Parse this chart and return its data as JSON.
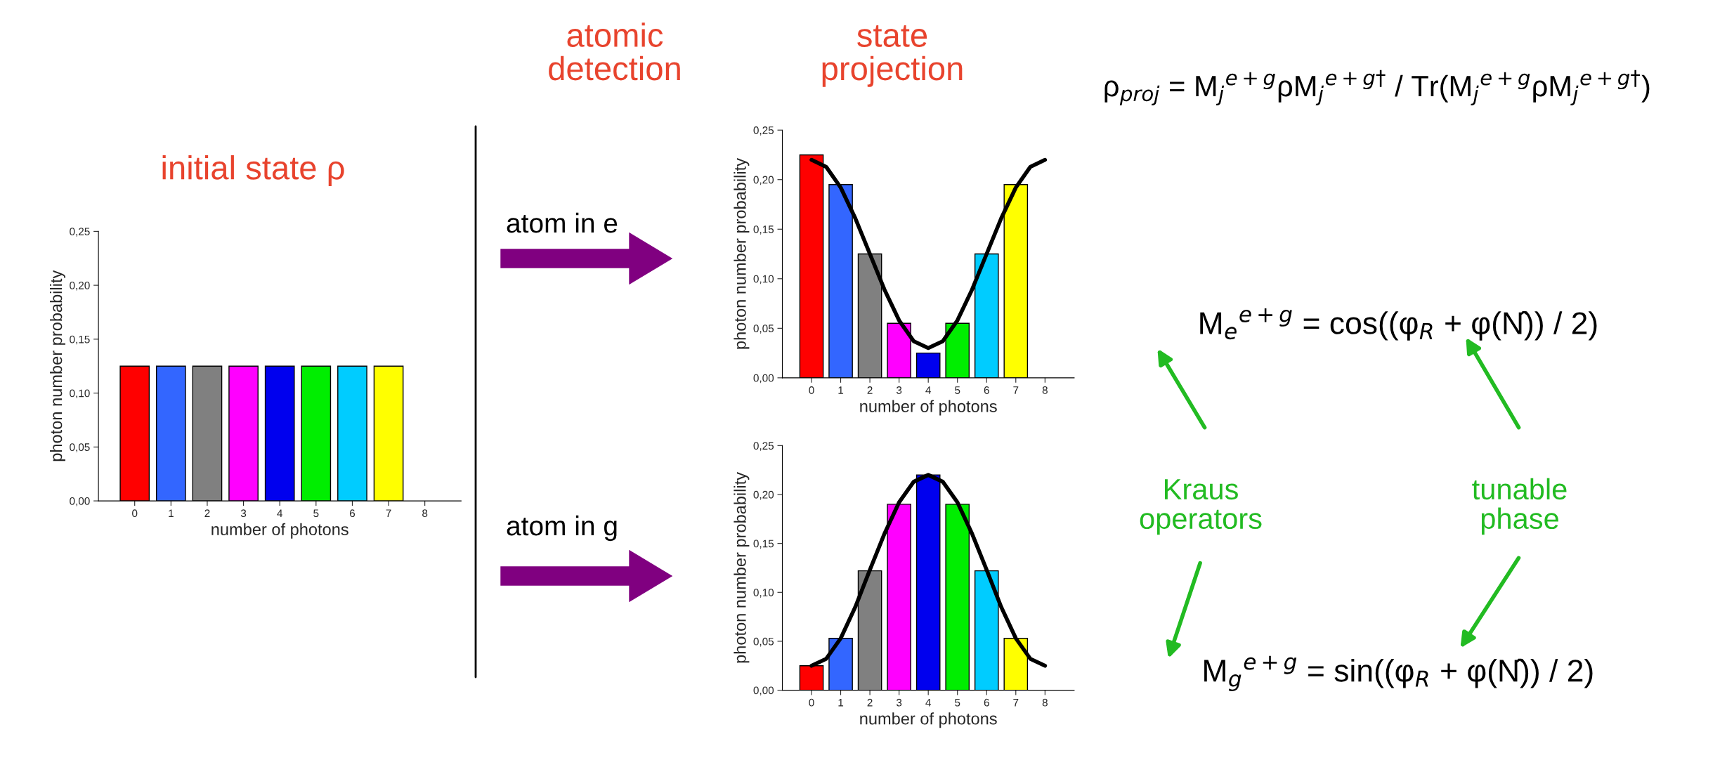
{
  "chart_data": [
    {
      "type": "bar",
      "x": [
        0,
        1,
        2,
        3,
        4,
        5,
        6,
        7
      ],
      "values": [
        0.125,
        0.125,
        0.125,
        0.125,
        0.125,
        0.125,
        0.125,
        0.125
      ],
      "colors": [
        "#ff0000",
        "#3366ff",
        "#808080",
        "#ff00ff",
        "#0000ee",
        "#00ee00",
        "#00ccff",
        "#ffff00"
      ],
      "xlabel": "number of photons",
      "ylabel": "photon number probability",
      "xlim": [
        -1,
        9
      ],
      "xticks": [
        0,
        1,
        2,
        3,
        4,
        5,
        6,
        7,
        8
      ],
      "ylim": [
        0,
        0.25
      ],
      "yticks": [
        {
          "value": 0,
          "label": "0,00"
        },
        {
          "value": 0.05,
          "label": "0,05"
        },
        {
          "value": 0.1,
          "label": "0,10"
        },
        {
          "value": 0.15,
          "label": "0,15"
        },
        {
          "value": 0.2,
          "label": "0,20"
        },
        {
          "value": 0.25,
          "label": "0,25"
        }
      ]
    },
    {
      "type": "bar",
      "x": [
        0,
        1,
        2,
        3,
        4,
        5,
        6,
        7
      ],
      "series": [
        {
          "type": "bar",
          "values": [
            0.225,
            0.195,
            0.125,
            0.055,
            0.025,
            0.055,
            0.125,
            0.195
          ],
          "colors": [
            "#ff0000",
            "#3366ff",
            "#808080",
            "#ff00ff",
            "#0000ee",
            "#00ee00",
            "#00ccff",
            "#ffff00"
          ]
        },
        {
          "type": "line",
          "color": "#000000",
          "x": [
            0,
            0.5,
            1,
            1.5,
            2,
            2.5,
            3,
            3.5,
            4,
            4.5,
            5,
            5.5,
            6,
            6.5,
            7,
            7.5,
            8
          ],
          "values": [
            0.22,
            0.213,
            0.192,
            0.161,
            0.125,
            0.089,
            0.058,
            0.037,
            0.03,
            0.037,
            0.058,
            0.089,
            0.125,
            0.161,
            0.192,
            0.213,
            0.22
          ]
        }
      ],
      "xlabel": "number of photons",
      "ylabel": "photon number probability",
      "xlim": [
        -1,
        9
      ],
      "xticks": [
        0,
        1,
        2,
        3,
        4,
        5,
        6,
        7,
        8
      ],
      "ylim": [
        0,
        0.25
      ],
      "yticks": [
        {
          "value": 0,
          "label": "0,00"
        },
        {
          "value": 0.05,
          "label": "0,05"
        },
        {
          "value": 0.1,
          "label": "0,10"
        },
        {
          "value": 0.15,
          "label": "0,15"
        },
        {
          "value": 0.2,
          "label": "0,20"
        },
        {
          "value": 0.25,
          "label": "0,25"
        }
      ]
    },
    {
      "type": "bar",
      "x": [
        0,
        1,
        2,
        3,
        4,
        5,
        6,
        7
      ],
      "series": [
        {
          "type": "bar",
          "values": [
            0.025,
            0.053,
            0.122,
            0.19,
            0.22,
            0.19,
            0.122,
            0.053
          ],
          "colors": [
            "#ff0000",
            "#3366ff",
            "#808080",
            "#ff00ff",
            "#0000ee",
            "#00ee00",
            "#00ccff",
            "#ffff00"
          ]
        },
        {
          "type": "line",
          "color": "#000000",
          "x": [
            0,
            0.5,
            1,
            1.5,
            2,
            2.5,
            3,
            3.5,
            4,
            4.5,
            5,
            5.5,
            6,
            6.5,
            7,
            7.5,
            8
          ],
          "values": [
            0.025,
            0.032,
            0.053,
            0.085,
            0.123,
            0.16,
            0.192,
            0.213,
            0.22,
            0.213,
            0.192,
            0.16,
            0.123,
            0.085,
            0.053,
            0.032,
            0.025
          ]
        }
      ],
      "xlabel": "number of photons",
      "ylabel": "photon number probability",
      "xlim": [
        -1,
        9
      ],
      "xticks": [
        0,
        1,
        2,
        3,
        4,
        5,
        6,
        7,
        8
      ],
      "ylim": [
        0,
        0.25
      ],
      "yticks": [
        {
          "value": 0,
          "label": "0,00"
        },
        {
          "value": 0.05,
          "label": "0,05"
        },
        {
          "value": 0.1,
          "label": "0,10"
        },
        {
          "value": 0.15,
          "label": "0,15"
        },
        {
          "value": 0.2,
          "label": "0,20"
        },
        {
          "value": 0.25,
          "label": "0,25"
        }
      ]
    },
    {
      "type": "other",
      "annotations": [
        "atomic\ndetection",
        "state\nprojection",
        "initial state ρ",
        "atom in e",
        "atom in g",
        "Kraus\noperators",
        "tunable\nphase",
        "ρ$_{proj}$ = M$_{j}$$^{e+g}$ρM$_{j}$$^{e+g†}$ / Tr(M$_{j}$$^{e+g}$ρM$_{j}$$^{e+g†}$)",
        "M$_{e}$$^{e+g}$ = cos((φ$_{R}$ + φ(N̂)) / 2)",
        "M$_{g}$$^{e+g}$ = sin((φ$_{R}$ + φ(N̂)) / 2)"
      ]
    }
  ]
}
